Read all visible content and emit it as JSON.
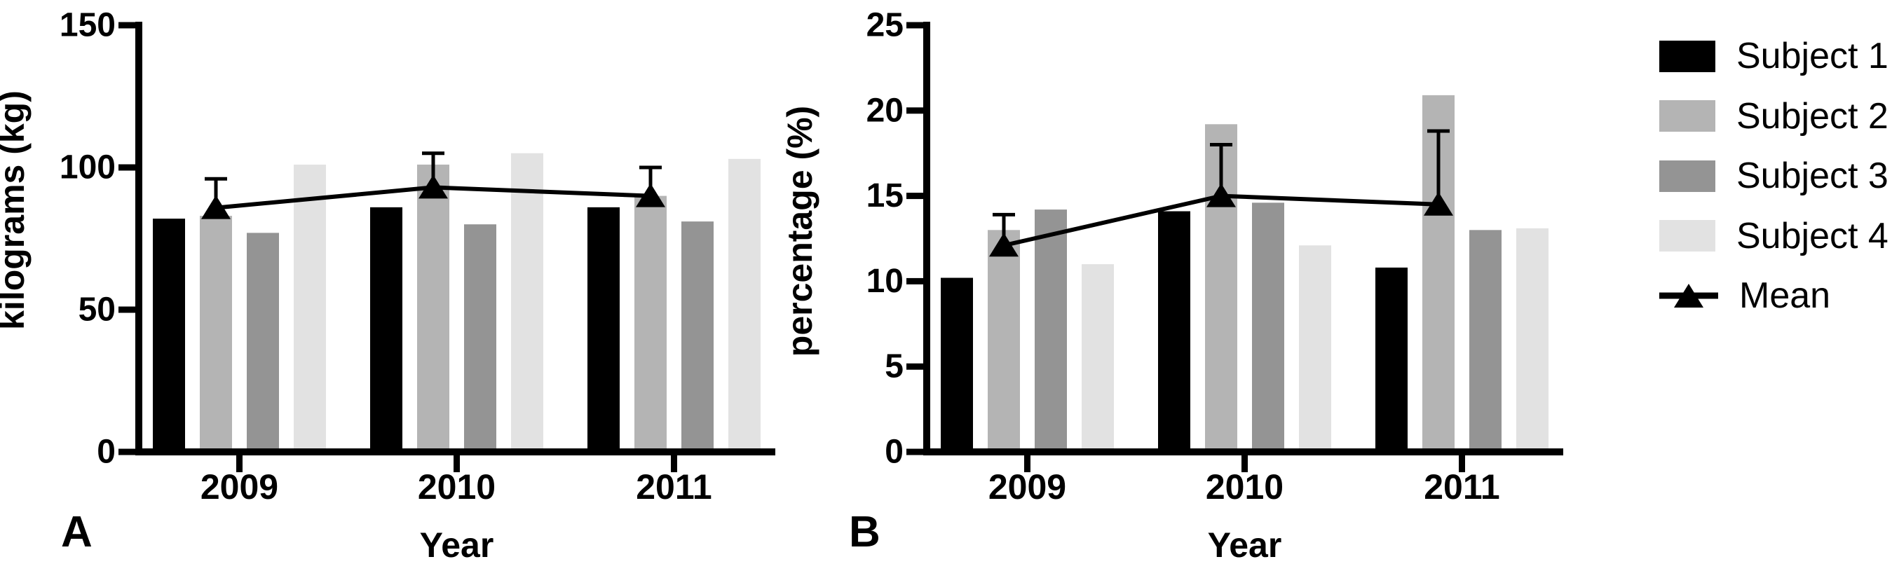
{
  "figure": {
    "background": "#ffffff",
    "axis_color": "#000000",
    "text_color": "#000000"
  },
  "legend": {
    "items": [
      {
        "label": "Subject 1",
        "type": "swatch",
        "color": "#000000"
      },
      {
        "label": "Subject 2",
        "type": "swatch",
        "color": "#b4b4b4"
      },
      {
        "label": "Subject 3",
        "type": "swatch",
        "color": "#949494"
      },
      {
        "label": "Subject 4",
        "type": "swatch",
        "color": "#e2e2e2"
      },
      {
        "label": "Mean",
        "type": "line-triangle",
        "color": "#000000"
      }
    ]
  },
  "chart_data": [
    {
      "panel_letter": "A",
      "type": "bar",
      "title": "",
      "xlabel": "Year",
      "ylabel": "kilograms (kg)",
      "categories": [
        "2009",
        "2010",
        "2011"
      ],
      "ylim": [
        0,
        150
      ],
      "yticks": [
        0,
        50,
        100,
        150
      ],
      "grid": false,
      "legend_position": "right",
      "series": [
        {
          "name": "Subject 1",
          "color": "#000000",
          "values": [
            82,
            86,
            86
          ]
        },
        {
          "name": "Subject 2",
          "color": "#b4b4b4",
          "values": [
            83,
            101,
            90
          ]
        },
        {
          "name": "Subject 3",
          "color": "#949494",
          "values": [
            77,
            80,
            81
          ]
        },
        {
          "name": "Subject 4",
          "color": "#e2e2e2",
          "values": [
            101,
            105,
            103
          ]
        }
      ],
      "mean_series": {
        "name": "Mean",
        "marker": "triangle",
        "color": "#000000",
        "values": [
          85.8,
          93.0,
          90.0
        ],
        "error_top": [
          96,
          105,
          100
        ]
      }
    },
    {
      "panel_letter": "B",
      "type": "bar",
      "title": "",
      "xlabel": "Year",
      "ylabel": "percentage (%)",
      "categories": [
        "2009",
        "2010",
        "2011"
      ],
      "ylim": [
        0,
        25
      ],
      "yticks": [
        0,
        5,
        10,
        15,
        20,
        25
      ],
      "grid": false,
      "legend_position": "right",
      "series": [
        {
          "name": "Subject 1",
          "color": "#000000",
          "values": [
            10.2,
            14.1,
            10.8
          ]
        },
        {
          "name": "Subject 2",
          "color": "#b4b4b4",
          "values": [
            13.0,
            19.2,
            20.9
          ]
        },
        {
          "name": "Subject 3",
          "color": "#949494",
          "values": [
            14.2,
            14.6,
            13.0
          ]
        },
        {
          "name": "Subject 4",
          "color": "#e2e2e2",
          "values": [
            11.0,
            12.1,
            13.1
          ]
        }
      ],
      "mean_series": {
        "name": "Mean",
        "marker": "triangle",
        "color": "#000000",
        "values": [
          12.1,
          15.0,
          14.5
        ],
        "error_top": [
          13.9,
          18.0,
          18.8
        ]
      }
    }
  ]
}
